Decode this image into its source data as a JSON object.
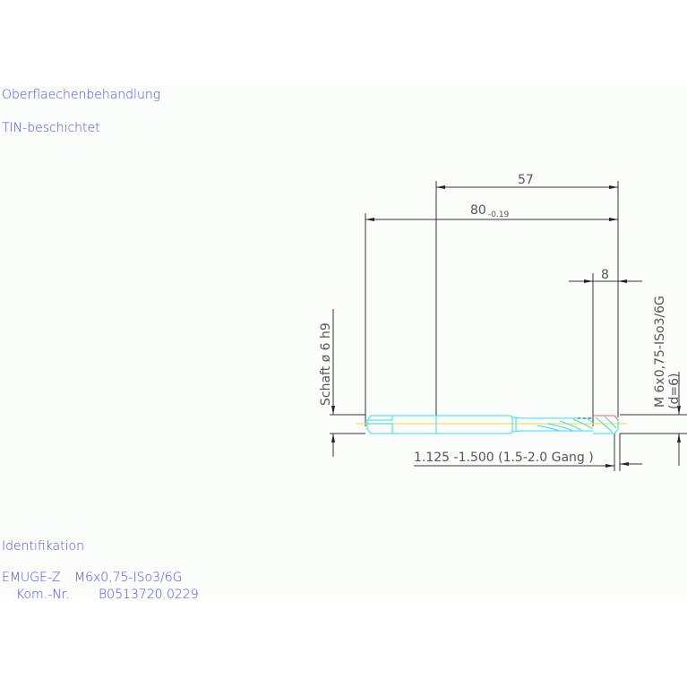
{
  "notes": {
    "surface_heading": "Oberflaechenbehandlung",
    "surface_value": "TIN-beschichtet",
    "identification_heading": "Identifikation",
    "id_line1_label": "EMUGE-Z",
    "id_line1_value": "M6x0,75-ISo3/6G",
    "id_line2_label": "Kom.-Nr.",
    "id_line2_value": "B0513720.0229"
  },
  "dimensions": {
    "length_57": "57",
    "length_80": "80",
    "length_80_tolerance": "-0.19",
    "length_8": "8",
    "shank": "Schaft ø 6 h9",
    "thread": "M 6x0,75-ISo3/6G",
    "thread_d": "(d=6)",
    "chamfer": "1.125  -1.500 (1.5-2.0 Gang  )"
  },
  "colors": {
    "text": "#4a4aff",
    "tool_outline": "#33e0f0",
    "centerline": "#f0e060",
    "thread_highlight": "#ff6060",
    "dimension": "#333333"
  }
}
